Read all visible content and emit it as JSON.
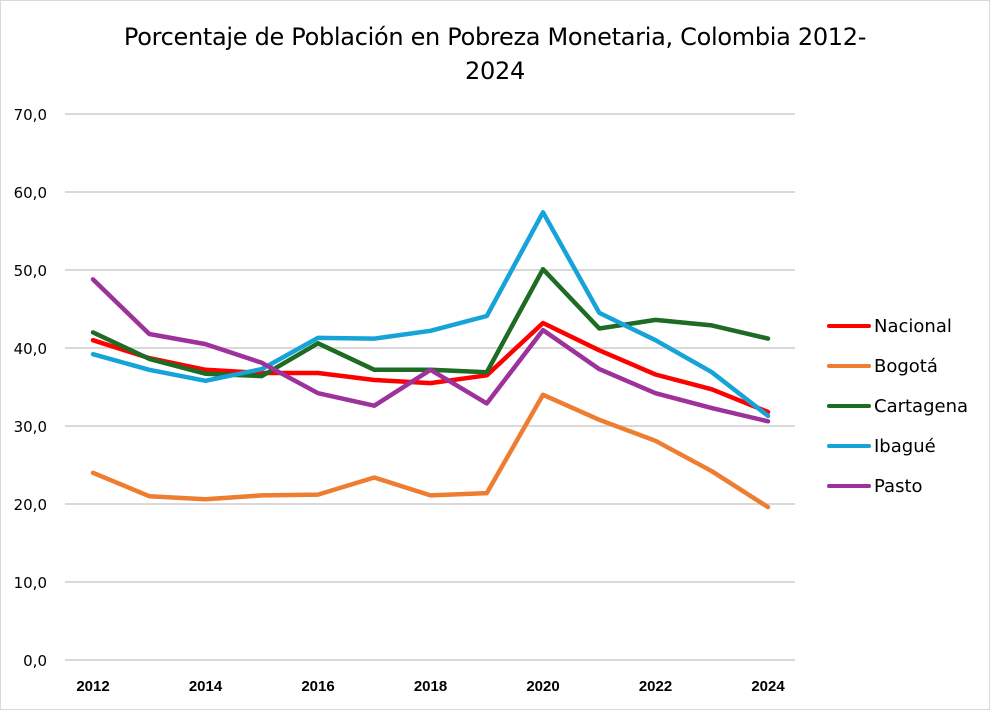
{
  "chart_data": {
    "type": "line",
    "title": "Porcentaje de Población en Pobreza Monetaria, Colombia 2012-2024",
    "title_lines": [
      "Porcentaje de Población en Pobreza Monetaria, Colombia 2012-",
      "2024"
    ],
    "xlabel": "",
    "ylabel": "",
    "x": [
      2012,
      2013,
      2014,
      2015,
      2016,
      2017,
      2018,
      2019,
      2020,
      2021,
      2022,
      2023,
      2024
    ],
    "x_tick_labels": [
      "2012",
      "2014",
      "2016",
      "2018",
      "2020",
      "2022",
      "2024"
    ],
    "x_tick_values": [
      2012,
      2014,
      2016,
      2018,
      2020,
      2022,
      2024
    ],
    "ylim": [
      0,
      70
    ],
    "y_ticks": [
      0,
      10,
      20,
      30,
      40,
      50,
      60,
      70
    ],
    "y_tick_labels": [
      "0,0",
      "10,0",
      "20,0",
      "30,0",
      "40,0",
      "50,0",
      "60,0",
      "70,0"
    ],
    "grid": true,
    "legend_position": "right",
    "series": [
      {
        "name": "Nacional",
        "color": "#ff0000",
        "values": [
          41.0,
          38.7,
          37.2,
          36.8,
          36.8,
          35.9,
          35.5,
          36.5,
          43.2,
          39.7,
          36.6,
          34.7,
          31.8
        ]
      },
      {
        "name": "Bogotá",
        "color": "#ed7d31",
        "values": [
          24.0,
          21.0,
          20.6,
          21.1,
          21.2,
          23.4,
          21.1,
          21.4,
          34.0,
          30.8,
          28.1,
          24.2,
          19.6
        ]
      },
      {
        "name": "Cartagena",
        "color": "#1e6b23",
        "values": [
          42.0,
          38.6,
          36.7,
          36.4,
          40.6,
          37.2,
          37.2,
          36.9,
          50.1,
          42.5,
          43.6,
          42.9,
          41.2
        ]
      },
      {
        "name": "Ibagué",
        "color": "#16a3d8",
        "values": [
          39.2,
          37.2,
          35.8,
          37.3,
          41.3,
          41.2,
          42.2,
          44.1,
          57.4,
          44.5,
          41.0,
          36.9,
          31.3
        ]
      },
      {
        "name": "Pasto",
        "color": "#9c329a",
        "values": [
          48.8,
          41.8,
          40.5,
          38.1,
          34.2,
          32.6,
          37.2,
          32.9,
          42.3,
          37.3,
          34.2,
          32.3,
          30.6
        ]
      }
    ]
  }
}
